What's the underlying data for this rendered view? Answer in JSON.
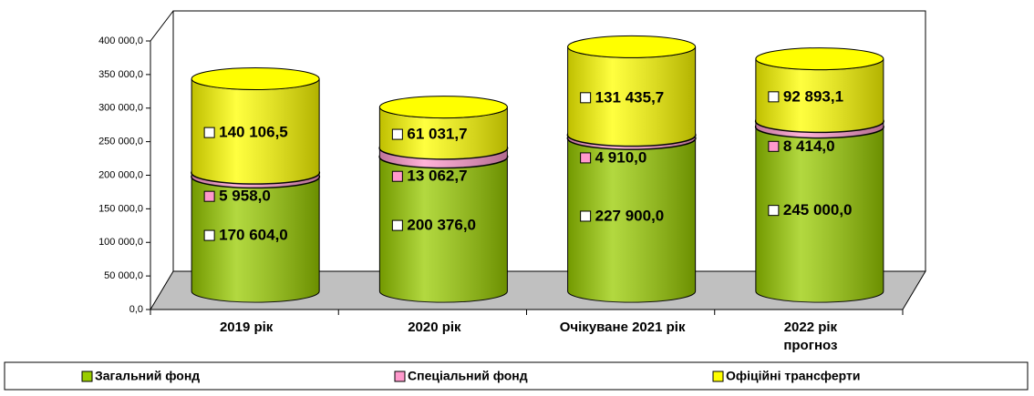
{
  "chart_data": {
    "type": "cylinder-stacked-bar",
    "categories": [
      "2019 рік",
      "2020 рік",
      "Очікуване 2021 рік",
      "2022 рік\nпрогноз"
    ],
    "series": [
      {
        "name": "Загальний фонд",
        "color": "#99cc00",
        "values": [
          170604.0,
          200376.0,
          227900.0,
          245000.0
        ],
        "value_labels": [
          "170 604,0",
          "200 376,0",
          "227 900,0",
          "245 000,0"
        ]
      },
      {
        "name": "Спеціальний фонд",
        "color": "#ff99cc",
        "values": [
          5958.0,
          13062.7,
          4910.0,
          8414.0
        ],
        "value_labels": [
          "5 958,0",
          "13 062,7",
          "4 910,0",
          "8 414,0"
        ]
      },
      {
        "name": "Офіційні трансферти",
        "color": "#ffff00",
        "values": [
          140106.5,
          61031.7,
          131435.7,
          92893.1
        ],
        "value_labels": [
          "140 106,5",
          "61 031,7",
          "131 435,7",
          "92 893,1"
        ]
      }
    ],
    "ylim": [
      0,
      400000
    ],
    "yticks": [
      {
        "value": 0,
        "label": "0,0"
      },
      {
        "value": 50000,
        "label": "50 000,0"
      },
      {
        "value": 100000,
        "label": "100 000,0"
      },
      {
        "value": 150000,
        "label": "150 000,0"
      },
      {
        "value": 200000,
        "label": "200 000,0"
      },
      {
        "value": 250000,
        "label": "250 000,0"
      },
      {
        "value": 300000,
        "label": "300 000,0"
      },
      {
        "value": 350000,
        "label": "350 000,0"
      },
      {
        "value": 400000,
        "label": "400 000,0"
      }
    ],
    "legend": "bottom"
  }
}
